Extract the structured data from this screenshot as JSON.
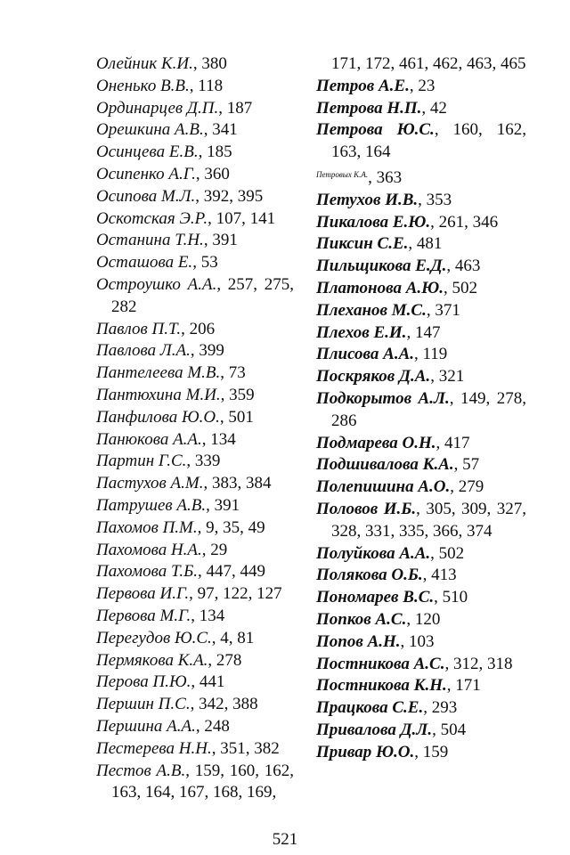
{
  "left_column": [
    {
      "name": "Олейник К.И.",
      "pages": ", 380"
    },
    {
      "name": "Оненько В.В.",
      "pages": ", 118"
    },
    {
      "name": "Ординарцев Д.П.",
      "pages": ", 187"
    },
    {
      "name": "Орешкина А.В.",
      "pages": ", 341"
    },
    {
      "name": "Осинцева Е.В.",
      "pages": ", 185"
    },
    {
      "name": "Осипенко А.Г.",
      "pages": ", 360"
    },
    {
      "name": "Осипова М.Л.",
      "pages": ", 392, 395"
    },
    {
      "name": "Оскотская Э.Р.",
      "pages": ", 107, 141"
    },
    {
      "name": "Останина Т.Н.",
      "pages": ", 391"
    },
    {
      "name": "Осташова Е.",
      "pages": ", 53"
    },
    {
      "name": "Остроушко А.А.",
      "pages": ", 257, 275, 282"
    },
    {
      "name": "Павлов П.Т.",
      "pages": ", 206"
    },
    {
      "name": "Павлова Л.А.",
      "pages": ", 399"
    },
    {
      "name": "Пантелеева М.В.",
      "pages": ", 73"
    },
    {
      "name": "Пантюхина М.И.",
      "pages": ", 359"
    },
    {
      "name": "Панфилова Ю.О.",
      "pages": ", 501"
    },
    {
      "name": "Панюкова А.А.",
      "pages": ", 134"
    },
    {
      "name": "Партин Г.С.",
      "pages": ", 339"
    },
    {
      "name": "Пастухов А.М.",
      "pages": ", 383, 384"
    },
    {
      "name": "Патрушев А.В.",
      "pages": ", 391"
    },
    {
      "name": "Пахомов П.М.",
      "pages": ", 9, 35, 49"
    },
    {
      "name": "Пахомова Н.А.",
      "pages": ", 29"
    },
    {
      "name": "Пахомова Т.Б.",
      "pages": ", 447, 449"
    },
    {
      "name": "Первова И.Г.",
      "pages": ", 97, 122, 127"
    },
    {
      "name": "Первова М.Г.",
      "pages": ", 134"
    },
    {
      "name": "Перегудов Ю.С.",
      "pages": ", 4, 81"
    },
    {
      "name": "Пермякова К.А.",
      "pages": ", 278"
    },
    {
      "name": "Перова П.Ю.",
      "pages": ", 441"
    },
    {
      "name": "Першин П.С.",
      "pages": ", 342, 388"
    },
    {
      "name": "Першина А.А.",
      "pages": ", 248"
    },
    {
      "name": "Пестерева Н.Н.",
      "pages": ", 351, 382"
    },
    {
      "name": "Пестов А.В.",
      "pages": ", 159, 160, 162, 163, 164, 167, 168, 169,"
    }
  ],
  "right_continuation": "171, 172, 461, 462, 463, 465",
  "right_column": [
    {
      "name": "Петров А.Е.",
      "pages": ", 23"
    },
    {
      "name": "Петрова Н.П.",
      "pages": ", 42"
    },
    {
      "name": "Петрова Ю.С.",
      "pages": ", 160, 162, 163, 164"
    },
    {
      "name": "Петровых К.А.",
      "pages": ", 363",
      "small": true
    },
    {
      "name": "Петухов И.В.",
      "pages": ", 353"
    },
    {
      "name": "Пикалова Е.Ю.",
      "pages": ", 261, 346"
    },
    {
      "name": "Пиксин С.Е.",
      "pages": ", 481"
    },
    {
      "name": "Пильщикова Е.Д.",
      "pages": ", 463"
    },
    {
      "name": "Платонова А.Ю.",
      "pages": ", 502"
    },
    {
      "name": "Плеханов М.С.",
      "pages": ", 371"
    },
    {
      "name": "Плехов Е.И.",
      "pages": ", 147"
    },
    {
      "name": "Плисова А.А.",
      "pages": ", 119"
    },
    {
      "name": "Поскряков Д.А.",
      "pages": ", 321"
    },
    {
      "name": "Подкорытов А.Л.",
      "pages": ", 149, 278, 286"
    },
    {
      "name": "Подмарева О.Н.",
      "pages": ", 417"
    },
    {
      "name": "Подшивалова К.А.",
      "pages": ", 57"
    },
    {
      "name": "Полепишина А.О.",
      "pages": ", 279"
    },
    {
      "name": "Половов И.Б.",
      "pages": ", 305, 309, 327, 328, 331, 335, 366, 374"
    },
    {
      "name": "Полуйкова А.А.",
      "pages": ", 502"
    },
    {
      "name": "Полякова О.Б.",
      "pages": ", 413"
    },
    {
      "name": "Пономарев В.С.",
      "pages": ", 510"
    },
    {
      "name": "Попков А.С.",
      "pages": ", 120"
    },
    {
      "name": "Попов А.Н.",
      "pages": ", 103"
    },
    {
      "name": "Постникова А.С.",
      "pages": ", 312, 318"
    },
    {
      "name": "Постникова К.Н.",
      "pages": ", 171"
    },
    {
      "name": "Працкова С.Е.",
      "pages": ", 293"
    },
    {
      "name": "Привалова Д.Л.",
      "pages": ", 504"
    },
    {
      "name": "Привар Ю.О.",
      "pages": ", 159"
    }
  ],
  "page_number": "521"
}
